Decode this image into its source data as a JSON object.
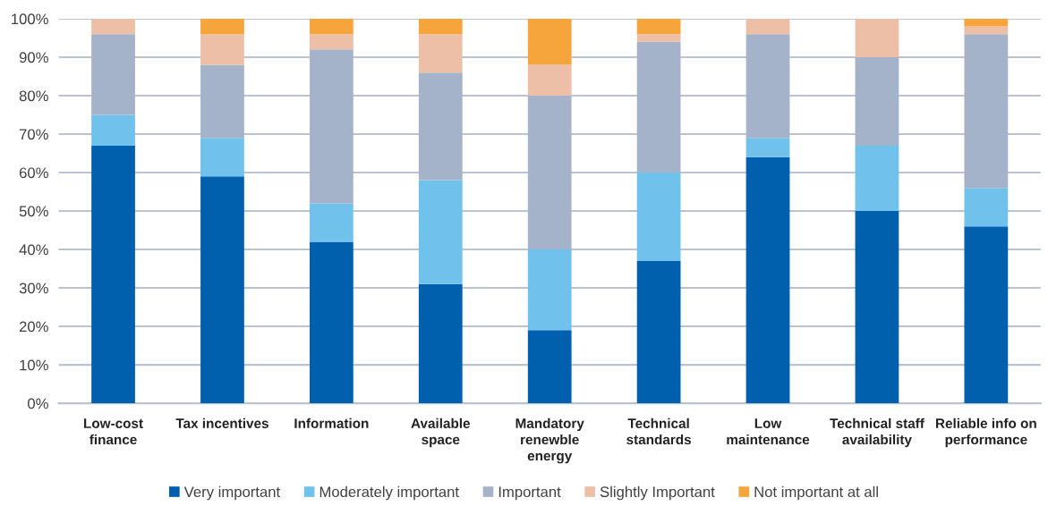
{
  "chart_data": {
    "type": "bar",
    "stacked": true,
    "categories": [
      "Low-cost\nfinance",
      "Tax incentives",
      "Information",
      "Available\nspace",
      "Mandatory\nrenewble\nenergy",
      "Technical\nstandards",
      "Low\nmaintenance",
      "Technical staff\navailability",
      "Reliable info on\nperformance"
    ],
    "series": [
      {
        "name": "Very important",
        "color": "#0060ae",
        "values": [
          67,
          59,
          42,
          31,
          19,
          37,
          64,
          50,
          46
        ]
      },
      {
        "name": "Moderately important",
        "color": "#70c2ec",
        "values": [
          8,
          10,
          10,
          27,
          21,
          23,
          5,
          17,
          10
        ]
      },
      {
        "name": "Important",
        "color": "#a4b3c9",
        "values": [
          21,
          19,
          40,
          28,
          40,
          34,
          27,
          23,
          40
        ]
      },
      {
        "name": "Slightly Important",
        "color": "#ecbfa6",
        "values": [
          4,
          8,
          4,
          10,
          8,
          2,
          4,
          10,
          2
        ]
      },
      {
        "name": "Not important at all",
        "color": "#f6a53c",
        "values": [
          0,
          4,
          4,
          4,
          12,
          4,
          0,
          0,
          2
        ]
      }
    ],
    "ylim": [
      0,
      100
    ],
    "yticks": [
      {
        "value": 0,
        "label": "0%"
      },
      {
        "value": 10,
        "label": "10%"
      },
      {
        "value": 20,
        "label": "20%"
      },
      {
        "value": 30,
        "label": "30%"
      },
      {
        "value": 40,
        "label": "40%"
      },
      {
        "value": 50,
        "label": "50%"
      },
      {
        "value": 60,
        "label": "60%"
      },
      {
        "value": 70,
        "label": "70%"
      },
      {
        "value": 80,
        "label": "80%"
      },
      {
        "value": 90,
        "label": "90%"
      },
      {
        "value": 100,
        "label": "100%"
      }
    ],
    "grid": "y",
    "legend": "bottom"
  }
}
